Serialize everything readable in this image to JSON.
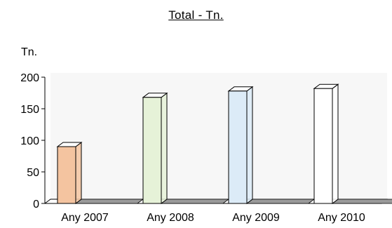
{
  "chart_data": {
    "type": "bar",
    "title": "Total - Tn.",
    "ylabel": "Tn.",
    "categories": [
      "Any 2007",
      "Any 2008",
      "Any 2009",
      "Any 2010"
    ],
    "values": [
      90,
      168,
      178,
      182
    ],
    "ylim": [
      0,
      200
    ],
    "yticks": [
      0,
      50,
      100,
      150,
      200
    ],
    "colors": [
      "#f4c4a0",
      "#e6f2d8",
      "#dcebf7",
      "#ffffff"
    ],
    "style": "3d-bar",
    "grid": false,
    "legend": "none"
  }
}
